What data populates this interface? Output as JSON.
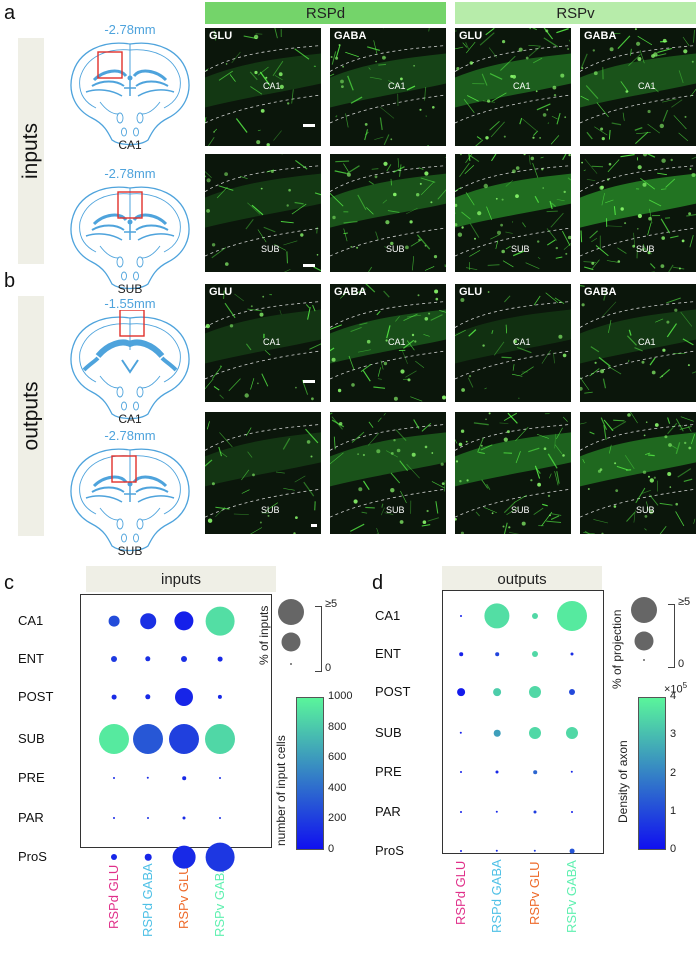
{
  "panels": {
    "a": "a",
    "b": "b",
    "c": "c",
    "d": "d"
  },
  "side_labels": {
    "inputs": "inputs",
    "outputs": "outputs"
  },
  "columns": {
    "rspd": "RSPd",
    "rspv": "RSPv"
  },
  "brains": [
    {
      "mm": "-2.78mm",
      "label": "CA1"
    },
    {
      "mm": "-2.78mm",
      "label": "SUB"
    },
    {
      "mm": "-1.55mm",
      "label": "CA1"
    },
    {
      "mm": "-2.78mm",
      "label": "SUB"
    }
  ],
  "micrographs": [
    [
      {
        "tag": "GLU",
        "region": "CA1"
      },
      {
        "tag": "GABA",
        "region": "CA1"
      },
      {
        "tag": "GLU",
        "region": "CA1"
      },
      {
        "tag": "GABA",
        "region": "CA1"
      }
    ],
    [
      {
        "tag": "",
        "region": "SUB"
      },
      {
        "tag": "",
        "region": "SUB"
      },
      {
        "tag": "",
        "region": "SUB"
      },
      {
        "tag": "",
        "region": "SUB"
      }
    ],
    [
      {
        "tag": "GLU",
        "region": "CA1"
      },
      {
        "tag": "GABA",
        "region": "CA1"
      },
      {
        "tag": "GLU",
        "region": "CA1"
      },
      {
        "tag": "GABA",
        "region": "CA1"
      }
    ],
    [
      {
        "tag": "",
        "region": "SUB"
      },
      {
        "tag": "",
        "region": "SUB"
      },
      {
        "tag": "",
        "region": "SUB"
      },
      {
        "tag": "",
        "region": "SUB"
      }
    ]
  ],
  "colors": {
    "header_rspd": "#74d46a",
    "header_rspv": "#b7ecaa",
    "atlas": "#4ea3dc",
    "roi": "#e0302b",
    "rspd_glu": "#e0308a",
    "rspd_gaba": "#4ec0e6",
    "rspv_glu": "#ee6a2a",
    "rspv_gaba": "#5ff0b0",
    "cmap_low": "#1010f0",
    "cmap_high": "#5af59b"
  },
  "chart_data": [
    {
      "type": "bubble",
      "title": "inputs",
      "rows": [
        "CA1",
        "ENT",
        "POST",
        "SUB",
        "PRE",
        "PAR",
        "ProS"
      ],
      "columns": [
        "RSPd GLU",
        "RSPd GABA",
        "RSPv GLU",
        "RSPv GABA"
      ],
      "size_label": "% of inputs",
      "size_legend": [
        "≥5",
        "0"
      ],
      "color_label": "number of input  cells",
      "color_ticks": [
        "1000",
        "800",
        "600",
        "400",
        "200",
        "0"
      ],
      "color_range": [
        0,
        1000
      ],
      "percent": [
        [
          1.8,
          2.6,
          3.2,
          4.8
        ],
        [
          1.0,
          0.9,
          1.0,
          0.8
        ],
        [
          0.8,
          0.9,
          3.0,
          0.7
        ],
        [
          5.0,
          5.0,
          5.0,
          5.0
        ],
        [
          0.3,
          0.4,
          0.6,
          0.2
        ],
        [
          0.3,
          0.2,
          0.5,
          0.3
        ],
        [
          1.0,
          1.1,
          3.8,
          4.8
        ]
      ],
      "cells": [
        [
          260,
          140,
          70,
          900
        ],
        [
          180,
          140,
          130,
          110
        ],
        [
          120,
          110,
          90,
          110
        ],
        [
          950,
          310,
          210,
          870
        ],
        [
          120,
          120,
          110,
          140
        ],
        [
          110,
          140,
          120,
          150
        ],
        [
          100,
          90,
          110,
          170
        ]
      ]
    },
    {
      "type": "bubble",
      "title": "outputs",
      "rows": [
        "CA1",
        "ENT",
        "POST",
        "SUB",
        "PRE",
        "PAR",
        "ProS"
      ],
      "columns": [
        "RSPd GLU",
        "RSPd GABA",
        "RSPv GLU",
        "RSPv GABA"
      ],
      "size_label": "% of projection",
      "size_legend": [
        "≥5",
        "0"
      ],
      "color_label": "Density of axon",
      "color_exponent": "×10",
      "color_exponent_power": "5",
      "color_ticks": [
        "4",
        "3",
        "2",
        "1",
        "0"
      ],
      "color_range": [
        0,
        4
      ],
      "percent": [
        [
          0.2,
          4.2,
          1.0,
          5.0
        ],
        [
          0.6,
          0.6,
          1.0,
          0.5
        ],
        [
          1.3,
          1.3,
          2.0,
          1.0
        ],
        [
          0.4,
          1.1,
          2.0,
          2.0
        ],
        [
          0.3,
          0.5,
          0.6,
          0.4
        ],
        [
          0.2,
          0.4,
          0.5,
          0.3
        ],
        [
          0.2,
          0.4,
          0.4,
          0.8
        ]
      ],
      "density": [
        [
          0.3,
          3.6,
          3.5,
          3.8
        ],
        [
          0.3,
          0.9,
          3.5,
          0.5
        ],
        [
          0.2,
          3.3,
          3.5,
          1.0
        ],
        [
          0.3,
          2.5,
          3.5,
          3.5
        ],
        [
          0.3,
          0.4,
          1.5,
          0.4
        ],
        [
          0.3,
          0.4,
          0.8,
          0.3
        ],
        [
          0.3,
          0.5,
          0.8,
          1.2
        ]
      ]
    }
  ]
}
